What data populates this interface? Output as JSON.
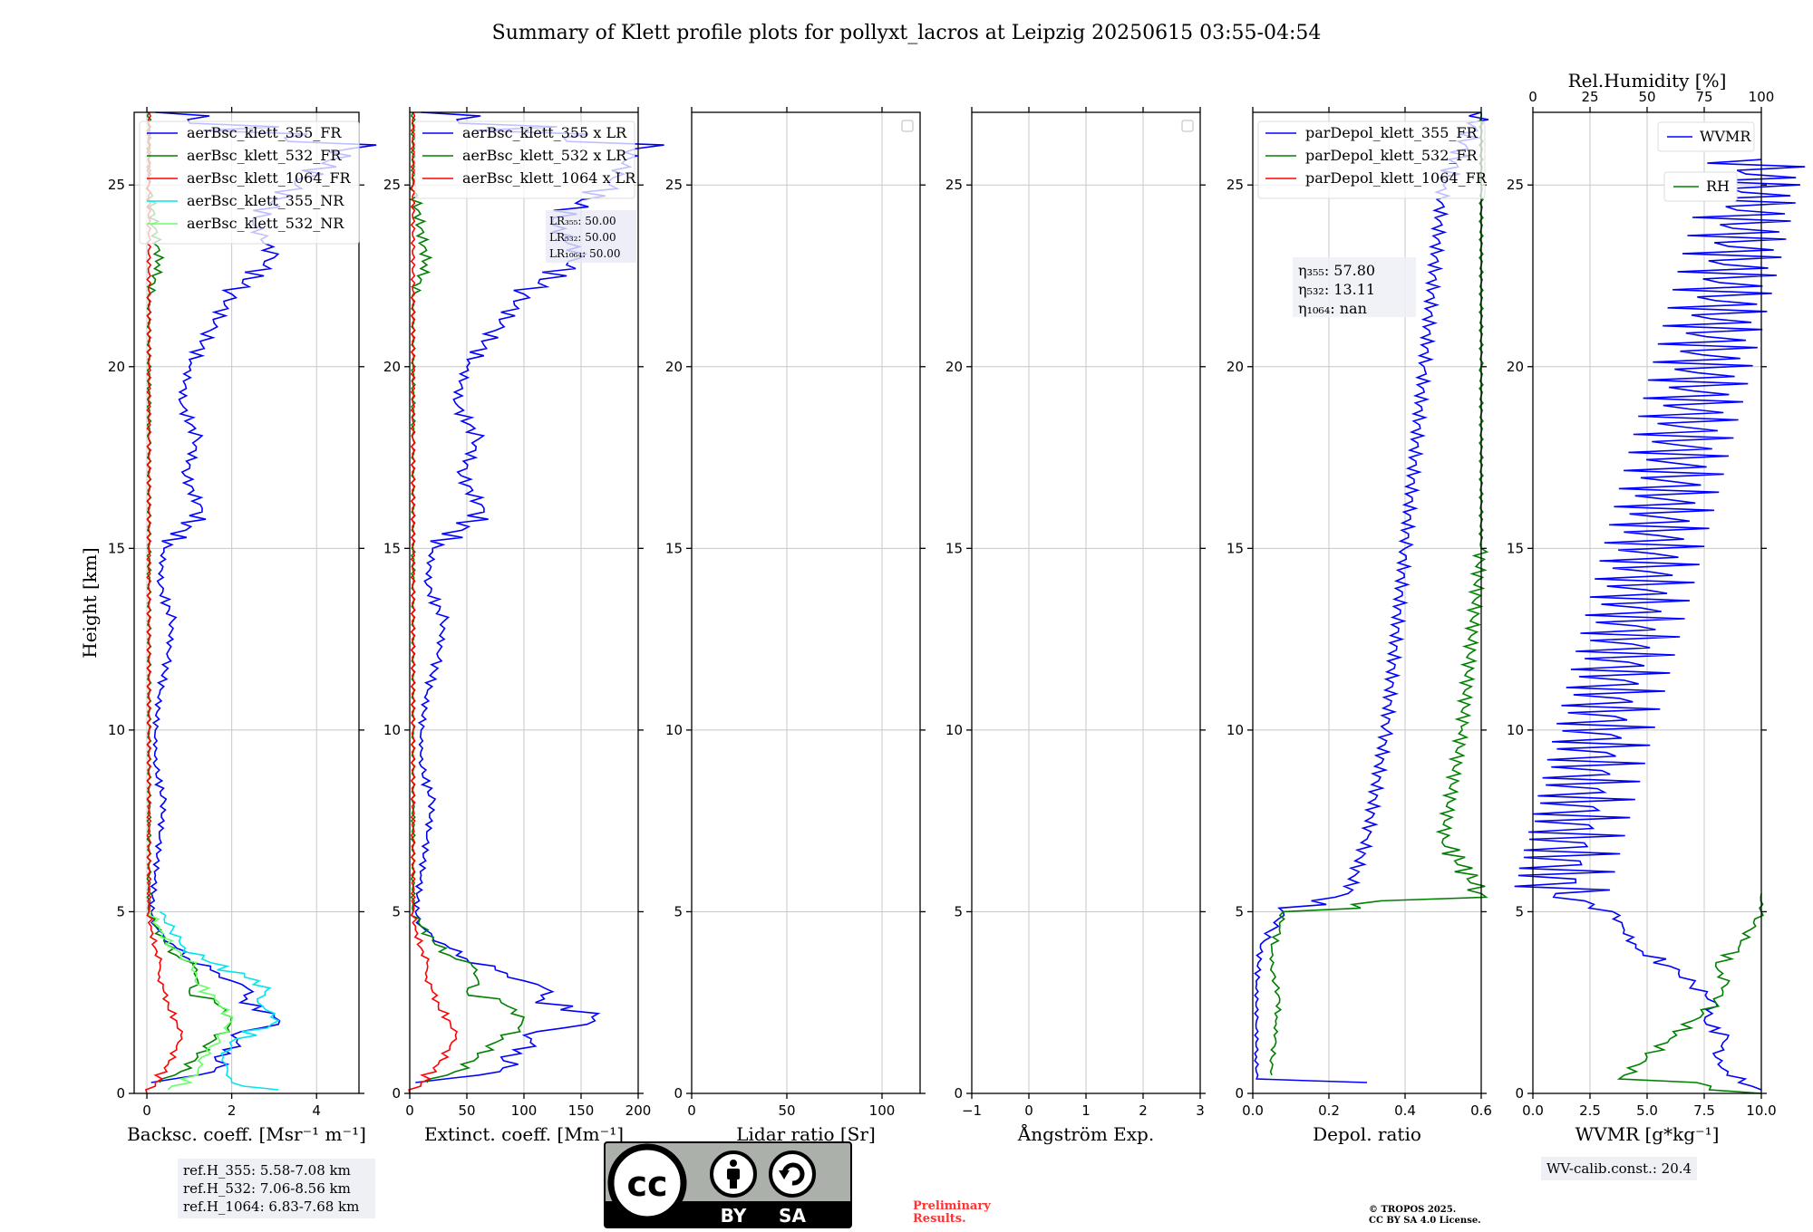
{
  "title": "Summary of Klett profile plots for pollyxt_lacros at Leipzig 20250615 03:55-04:54",
  "colors": {
    "blue": "#0000ff",
    "green": "#008000",
    "red": "#ff0000",
    "cyan": "#00e5ee",
    "lightgreen": "#66ff66",
    "grid": "#c8c8c8"
  },
  "chart_data": [
    {
      "type": "line",
      "panel": "backscatter",
      "xlabel": "Backsc. coeff. [Msr⁻¹ m⁻¹]",
      "ylabel": "Height [km]",
      "xlim": [
        -0.3,
        5
      ],
      "ylim": [
        0,
        27
      ],
      "xticks": [
        0,
        2,
        4
      ],
      "yticks": [
        0,
        5,
        10,
        15,
        20,
        25
      ],
      "legend": [
        "aerBsc_klett_355_FR",
        "aerBsc_klett_532_FR",
        "aerBsc_klett_1064_FR",
        "aerBsc_klett_355_NR",
        "aerBsc_klett_532_NR"
      ],
      "series": [
        {
          "name": "aerBsc_klett_355_FR",
          "color": "blue",
          "y": [
            0.3,
            0.5,
            0.8,
            1.0,
            1.3,
            1.6,
            1.9,
            2.2,
            2.5,
            2.8,
            3.1,
            3.4,
            3.7,
            4.0,
            4.3,
            4.6,
            5.0,
            6.0,
            7.0,
            8.0,
            9.0,
            10.0,
            11.0,
            12.0,
            13.0,
            14.0,
            15.0,
            16.0,
            17.0,
            18.0,
            19.0,
            20.0,
            21.0,
            22.0,
            23.0,
            24.0,
            25.0,
            26.0,
            27.0
          ],
          "x": [
            0.1,
            1.2,
            1.9,
            1.6,
            2.2,
            2.0,
            3.1,
            3.0,
            2.2,
            2.5,
            2.0,
            1.5,
            1.0,
            0.7,
            0.4,
            0.2,
            0.1,
            0.2,
            0.3,
            0.4,
            0.2,
            0.2,
            0.3,
            0.5,
            0.6,
            0.3,
            0.4,
            1.3,
            0.9,
            1.2,
            0.8,
            1.0,
            1.5,
            2.0,
            3.0,
            2.5,
            3.5,
            4.8,
            0.2
          ]
        },
        {
          "name": "aerBsc_klett_532_FR",
          "color": "green",
          "y": [
            0.3,
            0.6,
            1.0,
            1.4,
            1.8,
            2.1,
            2.5,
            2.8,
            3.1,
            3.5,
            3.8,
            4.2,
            4.6,
            5.0,
            6.0,
            8.0,
            10.0,
            14.0,
            18.0,
            22.0,
            22.8,
            25.0,
            27.0
          ],
          "x": [
            0.3,
            0.8,
            1.2,
            1.5,
            1.9,
            2.0,
            1.6,
            1.0,
            1.2,
            1.1,
            0.7,
            0.4,
            0.2,
            0.05,
            0.05,
            0.05,
            0.05,
            0.05,
            0.05,
            0.05,
            0.3,
            0.05,
            0.05
          ]
        },
        {
          "name": "aerBsc_klett_1064_FR",
          "color": "red",
          "y": [
            0.0,
            0.3,
            0.8,
            1.2,
            1.6,
            2.0,
            2.4,
            2.8,
            3.2,
            3.6,
            4.0,
            4.5,
            5.0,
            7.0,
            10.0,
            15.0,
            20.0,
            25.0,
            27.0
          ],
          "x": [
            0.0,
            0.2,
            0.5,
            0.7,
            0.8,
            0.7,
            0.5,
            0.4,
            0.3,
            0.3,
            0.2,
            0.1,
            0.05,
            0.05,
            0.05,
            0.05,
            0.05,
            0.05,
            0.05
          ]
        },
        {
          "name": "aerBsc_klett_355_NR",
          "color": "cyan",
          "y": [
            0.1,
            0.3,
            0.6,
            1.0,
            1.5,
            2.0,
            2.3,
            2.6,
            2.9,
            3.2,
            3.6,
            4.0,
            4.5,
            5.0
          ],
          "x": [
            3.1,
            2.0,
            1.9,
            1.8,
            2.1,
            3.1,
            2.8,
            2.6,
            2.9,
            2.3,
            1.5,
            0.9,
            0.6,
            0.3
          ]
        },
        {
          "name": "aerBsc_klett_532_NR",
          "color": "lightgreen",
          "y": [
            0.1,
            0.5,
            1.0,
            1.5,
            2.0,
            2.5,
            3.0,
            3.5,
            4.0,
            4.5,
            5.0
          ],
          "x": [
            0.5,
            1.2,
            1.3,
            1.7,
            2.0,
            1.7,
            1.2,
            1.1,
            0.6,
            0.3,
            0.1
          ]
        }
      ]
    },
    {
      "type": "line",
      "panel": "extinction",
      "xlabel": "Extinct. coeff. [Mm⁻¹]",
      "xlim": [
        0,
        200
      ],
      "ylim": [
        0,
        27
      ],
      "xticks": [
        0,
        50,
        100,
        150,
        200
      ],
      "yticks": [
        0,
        5,
        10,
        15,
        20,
        25
      ],
      "legend": [
        "aerBsc_klett_355 x LR",
        "aerBsc_klett_532 x LR",
        "aerBsc_klett_1064 x LR"
      ],
      "lr_labels": [
        "LR₃₅₅: 50.00",
        "LR₅₃₂: 50.00",
        "LR₁₀₆₄: 50.00"
      ],
      "series": [
        {
          "name": "aerBsc_klett_355 x LR",
          "color": "blue",
          "y": [
            0.3,
            0.5,
            0.8,
            1.0,
            1.3,
            1.6,
            1.9,
            2.2,
            2.5,
            2.8,
            3.1,
            3.4,
            3.7,
            4.0,
            4.3,
            4.6,
            5.0,
            6.0,
            7.0,
            8.0,
            9.0,
            10.0,
            11.0,
            12.0,
            13.0,
            14.0,
            15.0,
            16.0,
            17.0,
            18.0,
            19.0,
            20.0,
            21.0,
            22.0,
            23.0,
            24.0,
            25.0,
            26.0,
            27.0
          ],
          "x": [
            5,
            60,
            95,
            80,
            110,
            100,
            155,
            165,
            110,
            125,
            100,
            75,
            50,
            35,
            20,
            10,
            5,
            10,
            15,
            20,
            10,
            10,
            15,
            25,
            30,
            15,
            20,
            65,
            45,
            60,
            40,
            50,
            75,
            100,
            150,
            125,
            175,
            198,
            10
          ]
        },
        {
          "name": "aerBsc_klett_532 x LR",
          "color": "green",
          "y": [
            0.3,
            0.6,
            1.0,
            1.4,
            1.8,
            2.1,
            2.5,
            2.8,
            3.1,
            3.5,
            3.8,
            4.2,
            4.6,
            5.0,
            6.0,
            8.0,
            10.0,
            14.0,
            18.0,
            22.0,
            22.8,
            25.0,
            27.0
          ],
          "x": [
            15,
            40,
            60,
            75,
            95,
            100,
            80,
            50,
            60,
            55,
            35,
            20,
            10,
            3,
            3,
            3,
            3,
            3,
            3,
            3,
            15,
            3,
            3
          ]
        },
        {
          "name": "aerBsc_klett_1064 x LR",
          "color": "red",
          "y": [
            0.0,
            0.3,
            0.8,
            1.2,
            1.6,
            2.0,
            2.4,
            2.8,
            3.2,
            3.6,
            4.0,
            4.5,
            5.0,
            7.0,
            10.0,
            15.0,
            20.0,
            25.0,
            27.0
          ],
          "x": [
            0,
            10,
            25,
            35,
            40,
            35,
            25,
            20,
            15,
            15,
            10,
            5,
            3,
            3,
            3,
            3,
            3,
            3,
            3
          ]
        }
      ]
    },
    {
      "type": "line",
      "panel": "lidar_ratio",
      "xlabel": "Lidar ratio [Sr]",
      "xlim": [
        0,
        120
      ],
      "ylim": [
        0,
        27
      ],
      "xticks": [
        0,
        50,
        100
      ],
      "yticks": [
        0,
        5,
        10,
        15,
        20,
        25
      ],
      "series": []
    },
    {
      "type": "line",
      "panel": "angstrom",
      "xlabel": "Ångström Exp.",
      "xlim": [
        -1,
        3
      ],
      "ylim": [
        0,
        27
      ],
      "xticks": [
        -1,
        0,
        1,
        2,
        3
      ],
      "yticks": [
        0,
        5,
        10,
        15,
        20,
        25
      ],
      "series": []
    },
    {
      "type": "line",
      "panel": "depolarization",
      "xlabel": "Depol. ratio",
      "xlim": [
        0,
        0.6
      ],
      "ylim": [
        0,
        27
      ],
      "xticks": [
        0.0,
        0.2,
        0.4,
        0.6
      ],
      "xticklabels": [
        "0.0",
        "0.2",
        "0.4",
        "0.6"
      ],
      "yticks": [
        0,
        5,
        10,
        15,
        20,
        25
      ],
      "legend": [
        "parDepol_klett_355_FR",
        "parDepol_klett_532_FR",
        "parDepol_klett_1064_FR"
      ],
      "eta_labels": [
        "η₃₅₅: 57.80",
        "η₅₃₂: 13.11",
        "η₁₀₆₄: nan"
      ],
      "series": [
        {
          "name": "parDepol_klett_355_FR",
          "color": "blue",
          "y": [
            0.3,
            0.4,
            1.0,
            2.0,
            3.0,
            4.0,
            4.5,
            5.0,
            5.5,
            7.0,
            10.0,
            15.0,
            20.0,
            25.0,
            27.0
          ],
          "x": [
            0.3,
            0.01,
            0.01,
            0.01,
            0.01,
            0.02,
            0.05,
            0.08,
            0.25,
            0.3,
            0.35,
            0.4,
            0.45,
            0.5,
            0.6
          ]
        },
        {
          "name": "parDepol_klett_532_FR",
          "color": "green",
          "y": [
            0.5,
            1.0,
            1.5,
            2.0,
            2.5,
            3.0,
            3.5,
            4.0,
            4.5,
            5.0,
            5.5,
            7.0,
            10.0,
            15.0,
            20.0,
            25.0,
            27.0
          ],
          "x": [
            0.05,
            0.05,
            0.06,
            0.06,
            0.07,
            0.06,
            0.05,
            0.05,
            0.07,
            0.08,
            0.6,
            0.5,
            0.55,
            0.6,
            0.6,
            0.6,
            0.6
          ]
        },
        {
          "name": "parDepol_klett_1064_FR",
          "color": "red",
          "y": [],
          "x": []
        }
      ]
    },
    {
      "type": "line",
      "panel": "water_vapor",
      "xlabel": "WVMR [g*kg⁻¹]",
      "toplabel": "Rel.Humidity [%]",
      "xlim": [
        0,
        10
      ],
      "ylim": [
        0,
        27
      ],
      "xticks": [
        0.0,
        2.5,
        5.0,
        7.5,
        10.0
      ],
      "xticklabels": [
        "0.0",
        "2.5",
        "5.0",
        "7.5",
        "10.0"
      ],
      "topticks": [
        0,
        25,
        50,
        75,
        100
      ],
      "yticks": [
        0,
        5,
        10,
        15,
        20,
        25
      ],
      "legend": [
        "WVMR",
        "RH"
      ],
      "series": [
        {
          "name": "WVMR",
          "color": "blue",
          "y": [
            0.1,
            0.5,
            1.0,
            1.5,
            2.0,
            2.5,
            3.0,
            3.5,
            4.0,
            4.5,
            5.0,
            5.5,
            25.7
          ],
          "x": [
            10,
            8.5,
            8.0,
            8.5,
            7.5,
            8.0,
            7.0,
            6.0,
            4.5,
            4.0,
            3.5,
            1.0,
            10
          ]
        },
        {
          "name": "RH",
          "color": "green",
          "y": [
            0.0,
            0.5,
            1.0,
            1.5,
            2.0,
            2.5,
            3.0,
            3.5,
            4.0,
            4.5,
            5.0,
            5.5
          ],
          "x": [
            10,
            4.0,
            5.0,
            6.0,
            7.0,
            8.0,
            8.5,
            8.0,
            9.0,
            9.5,
            10,
            10
          ]
        }
      ]
    }
  ],
  "ref_heights": [
    "ref.H_355: 5.58-7.08 km",
    "ref.H_532: 7.06-8.56 km",
    "ref.H_1064: 6.83-7.68 km"
  ],
  "wv_calib": "WV-calib.const.: 20.4",
  "license_logo": {
    "cc": "cc",
    "by": "BY",
    "sa": "SA"
  },
  "preliminary": [
    "Preliminary",
    "Results."
  ],
  "copyright": [
    "© TROPOS 2025.",
    "CC BY SA 4.0 License."
  ]
}
